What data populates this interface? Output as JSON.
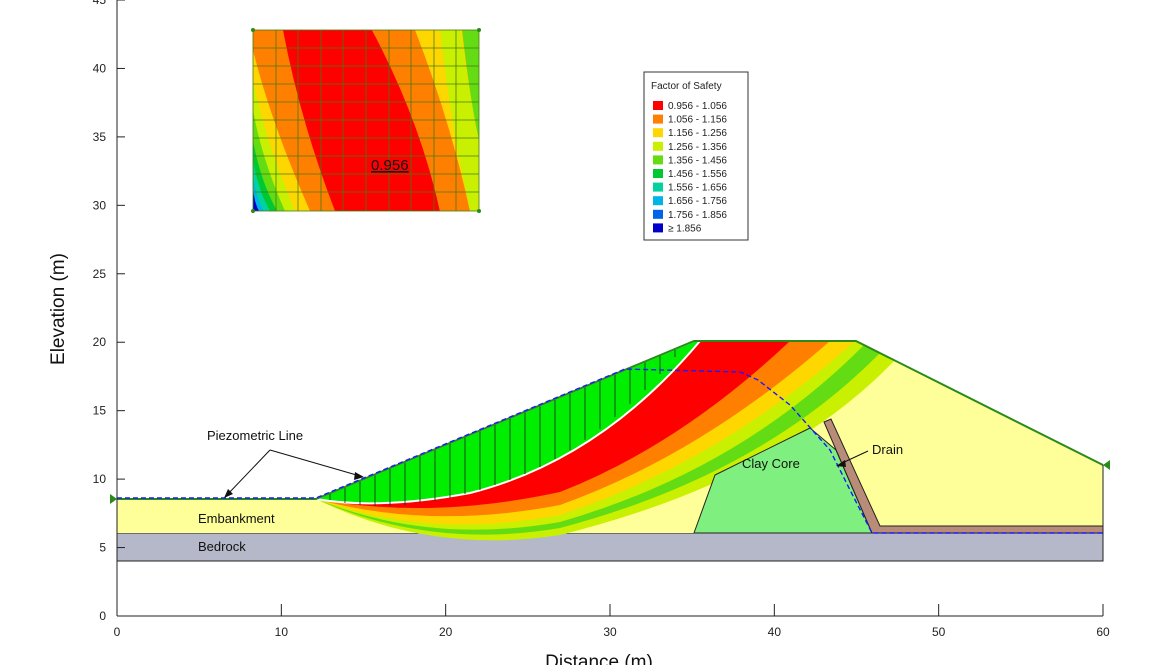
{
  "axes": {
    "xlabel": "Distance (m)",
    "ylabel": "Elevation (m)",
    "xlim": [
      0,
      60
    ],
    "ylim": [
      0,
      45
    ],
    "x_ticks": [
      "0",
      "10",
      "20",
      "30",
      "40",
      "50",
      "60"
    ],
    "y_ticks": [
      "0",
      "5",
      "10",
      "15",
      "20",
      "25",
      "30",
      "35",
      "40",
      "45"
    ]
  },
  "legend": {
    "title": "Factor of Safety",
    "items": [
      {
        "label": "0.956 - 1.056",
        "color": "#ff0000"
      },
      {
        "label": "1.056 - 1.156",
        "color": "#ff7f00"
      },
      {
        "label": "1.156 - 1.256",
        "color": "#ffd700"
      },
      {
        "label": "1.256 - 1.356",
        "color": "#c8f000"
      },
      {
        "label": "1.356 - 1.456",
        "color": "#64dc14"
      },
      {
        "label": "1.456 - 1.556",
        "color": "#00c832"
      },
      {
        "label": "1.556 - 1.656",
        "color": "#00d2a0"
      },
      {
        "label": "1.656 - 1.756",
        "color": "#00b4e6"
      },
      {
        "label": "1.756 - 1.856",
        "color": "#0064e6"
      },
      {
        "label": "≥ 1.856",
        "color": "#0000c8"
      }
    ]
  },
  "labels": {
    "min_fs": "0.956",
    "piezometric_line": "Piezometric Line",
    "embankment": "Embankment",
    "bedrock": "Bedrock",
    "clay_core": "Clay Core",
    "drain": "Drain"
  },
  "colors": {
    "embankment": "#ffff99",
    "bedrock": "#b4b8c8",
    "clay_core": "#7ff07f",
    "drain": "#b88c78",
    "slip_mass": "#00ee00",
    "outline_green": "#2a8a1a",
    "water_line": "#1a1aff"
  }
}
